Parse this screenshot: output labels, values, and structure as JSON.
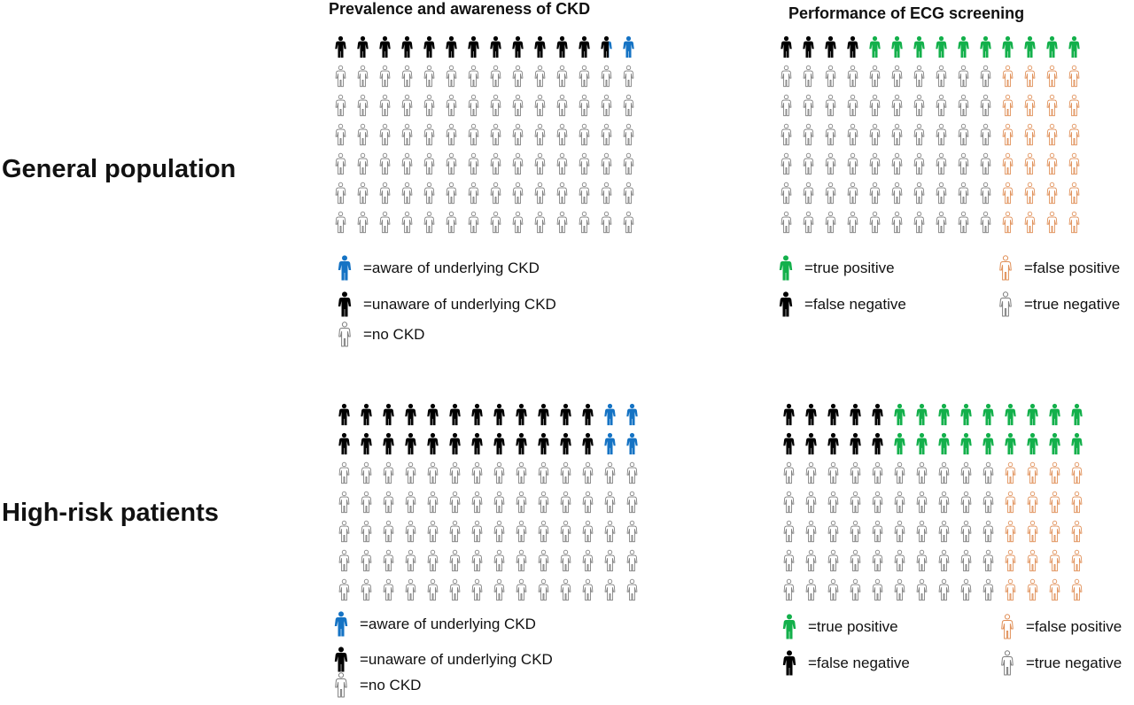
{
  "column_titles": {
    "prevalence": "Prevalence and awareness of CKD",
    "ecg": "Performance of ECG screening"
  },
  "row_labels": {
    "general": "General population",
    "high_risk": "High-risk patients"
  },
  "colors": {
    "aware": "#1573c4",
    "unaware": "#000000",
    "no_ckd": "#7f7f7f",
    "true_positive": "#13b04b",
    "false_negative": "#000000",
    "false_positive": "#e08f57",
    "true_negative": "#7f7f7f"
  },
  "icons": {
    "filled": "person-filled-icon",
    "outline": "person-outline-icon"
  },
  "legends": {
    "prevalence": {
      "aware": "=aware of underlying CKD",
      "unaware": "=unaware of underlying CKD",
      "no_ckd": "=no CKD"
    },
    "ecg": {
      "true_positive": "=true positive",
      "false_negative": "=false negative",
      "false_positive": "=false positive",
      "true_negative": "=true negative"
    }
  },
  "chart_data": [
    {
      "type": "icon-array",
      "panel": "general-prevalence",
      "title": "Prevalence and awareness of CKD",
      "rows": 7,
      "cols": 14,
      "rows_icons": [
        [
          "unaware",
          "unaware",
          "unaware",
          "unaware",
          "unaware",
          "unaware",
          "unaware",
          "unaware",
          "unaware",
          "unaware",
          "unaware",
          "unaware",
          "unaware-aware",
          "aware"
        ],
        [
          "no_ckd",
          "no_ckd",
          "no_ckd",
          "no_ckd",
          "no_ckd",
          "no_ckd",
          "no_ckd",
          "no_ckd",
          "no_ckd",
          "no_ckd",
          "no_ckd",
          "no_ckd",
          "no_ckd",
          "no_ckd"
        ],
        [
          "no_ckd",
          "no_ckd",
          "no_ckd",
          "no_ckd",
          "no_ckd",
          "no_ckd",
          "no_ckd",
          "no_ckd",
          "no_ckd",
          "no_ckd",
          "no_ckd",
          "no_ckd",
          "no_ckd",
          "no_ckd"
        ],
        [
          "no_ckd",
          "no_ckd",
          "no_ckd",
          "no_ckd",
          "no_ckd",
          "no_ckd",
          "no_ckd",
          "no_ckd",
          "no_ckd",
          "no_ckd",
          "no_ckd",
          "no_ckd",
          "no_ckd",
          "no_ckd"
        ],
        [
          "no_ckd",
          "no_ckd",
          "no_ckd",
          "no_ckd",
          "no_ckd",
          "no_ckd",
          "no_ckd",
          "no_ckd",
          "no_ckd",
          "no_ckd",
          "no_ckd",
          "no_ckd",
          "no_ckd",
          "no_ckd"
        ],
        [
          "no_ckd",
          "no_ckd",
          "no_ckd",
          "no_ckd",
          "no_ckd",
          "no_ckd",
          "no_ckd",
          "no_ckd",
          "no_ckd",
          "no_ckd",
          "no_ckd",
          "no_ckd",
          "no_ckd",
          "no_ckd"
        ],
        [
          "no_ckd",
          "no_ckd",
          "no_ckd",
          "no_ckd",
          "no_ckd",
          "no_ckd",
          "no_ckd",
          "no_ckd",
          "no_ckd",
          "no_ckd",
          "no_ckd",
          "no_ckd",
          "no_ckd",
          "no_ckd"
        ]
      ]
    },
    {
      "type": "icon-array",
      "panel": "general-ecg",
      "title": "Performance of ECG screening",
      "rows": 7,
      "cols": 14,
      "rows_icons": [
        [
          "false_negative",
          "false_negative",
          "false_negative",
          "false_negative",
          "true_positive",
          "true_positive",
          "true_positive",
          "true_positive",
          "true_positive",
          "true_positive",
          "true_positive",
          "true_positive",
          "true_positive",
          "true_positive"
        ],
        [
          "true_negative",
          "true_negative",
          "true_negative",
          "true_negative",
          "true_negative",
          "true_negative",
          "true_negative",
          "true_negative",
          "true_negative",
          "true_negative",
          "false_positive",
          "false_positive",
          "false_positive",
          "false_positive"
        ],
        [
          "true_negative",
          "true_negative",
          "true_negative",
          "true_negative",
          "true_negative",
          "true_negative",
          "true_negative",
          "true_negative",
          "true_negative",
          "true_negative",
          "false_positive",
          "false_positive",
          "false_positive",
          "false_positive"
        ],
        [
          "true_negative",
          "true_negative",
          "true_negative",
          "true_negative",
          "true_negative",
          "true_negative",
          "true_negative",
          "true_negative",
          "true_negative",
          "true_negative",
          "false_positive",
          "false_positive",
          "false_positive",
          "false_positive"
        ],
        [
          "true_negative",
          "true_negative",
          "true_negative",
          "true_negative",
          "true_negative",
          "true_negative",
          "true_negative",
          "true_negative",
          "true_negative",
          "true_negative",
          "false_positive",
          "false_positive",
          "false_positive",
          "false_positive"
        ],
        [
          "true_negative",
          "true_negative",
          "true_negative",
          "true_negative",
          "true_negative",
          "true_negative",
          "true_negative",
          "true_negative",
          "true_negative",
          "true_negative",
          "false_positive",
          "false_positive",
          "false_positive",
          "false_positive"
        ],
        [
          "true_negative",
          "true_negative",
          "true_negative",
          "true_negative",
          "true_negative",
          "true_negative",
          "true_negative",
          "true_negative",
          "true_negative",
          "true_negative",
          "false_positive",
          "false_positive",
          "false_positive",
          "false_positive"
        ]
      ]
    },
    {
      "type": "icon-array",
      "panel": "high-risk-prevalence",
      "rows": 7,
      "cols": 14,
      "rows_icons": [
        [
          "unaware",
          "unaware",
          "unaware",
          "unaware",
          "unaware",
          "unaware",
          "unaware",
          "unaware",
          "unaware",
          "unaware",
          "unaware",
          "unaware",
          "aware",
          "aware"
        ],
        [
          "unaware",
          "unaware",
          "unaware",
          "unaware",
          "unaware",
          "unaware",
          "unaware",
          "unaware",
          "unaware",
          "unaware",
          "unaware",
          "unaware",
          "aware",
          "aware"
        ],
        [
          "no_ckd",
          "no_ckd",
          "no_ckd",
          "no_ckd",
          "no_ckd",
          "no_ckd",
          "no_ckd",
          "no_ckd",
          "no_ckd",
          "no_ckd",
          "no_ckd",
          "no_ckd",
          "no_ckd",
          "no_ckd"
        ],
        [
          "no_ckd",
          "no_ckd",
          "no_ckd",
          "no_ckd",
          "no_ckd",
          "no_ckd",
          "no_ckd",
          "no_ckd",
          "no_ckd",
          "no_ckd",
          "no_ckd",
          "no_ckd",
          "no_ckd",
          "no_ckd"
        ],
        [
          "no_ckd",
          "no_ckd",
          "no_ckd",
          "no_ckd",
          "no_ckd",
          "no_ckd",
          "no_ckd",
          "no_ckd",
          "no_ckd",
          "no_ckd",
          "no_ckd",
          "no_ckd",
          "no_ckd",
          "no_ckd"
        ],
        [
          "no_ckd",
          "no_ckd",
          "no_ckd",
          "no_ckd",
          "no_ckd",
          "no_ckd",
          "no_ckd",
          "no_ckd",
          "no_ckd",
          "no_ckd",
          "no_ckd",
          "no_ckd",
          "no_ckd",
          "no_ckd"
        ],
        [
          "no_ckd",
          "no_ckd",
          "no_ckd",
          "no_ckd",
          "no_ckd",
          "no_ckd",
          "no_ckd",
          "no_ckd",
          "no_ckd",
          "no_ckd",
          "no_ckd",
          "no_ckd",
          "no_ckd",
          "no_ckd"
        ]
      ]
    },
    {
      "type": "icon-array",
      "panel": "high-risk-ecg",
      "rows": 7,
      "cols": 14,
      "rows_icons": [
        [
          "false_negative",
          "false_negative",
          "false_negative",
          "false_negative",
          "false_negative",
          "true_positive",
          "true_positive",
          "true_positive",
          "true_positive",
          "true_positive",
          "true_positive",
          "true_positive",
          "true_positive",
          "true_positive"
        ],
        [
          "false_negative",
          "false_negative",
          "false_negative",
          "false_negative",
          "false_negative",
          "true_positive",
          "true_positive",
          "true_positive",
          "true_positive",
          "true_positive",
          "true_positive",
          "true_positive",
          "true_positive",
          "true_positive"
        ],
        [
          "true_negative",
          "true_negative",
          "true_negative",
          "true_negative",
          "true_negative",
          "true_negative",
          "true_negative",
          "true_negative",
          "true_negative",
          "true_negative",
          "false_positive",
          "false_positive",
          "false_positive",
          "false_positive"
        ],
        [
          "true_negative",
          "true_negative",
          "true_negative",
          "true_negative",
          "true_negative",
          "true_negative",
          "true_negative",
          "true_negative",
          "true_negative",
          "true_negative",
          "false_positive",
          "false_positive",
          "false_positive",
          "false_positive"
        ],
        [
          "true_negative",
          "true_negative",
          "true_negative",
          "true_negative",
          "true_negative",
          "true_negative",
          "true_negative",
          "true_negative",
          "true_negative",
          "true_negative",
          "false_positive",
          "false_positive",
          "false_positive",
          "false_positive"
        ],
        [
          "true_negative",
          "true_negative",
          "true_negative",
          "true_negative",
          "true_negative",
          "true_negative",
          "true_negative",
          "true_negative",
          "true_negative",
          "true_negative",
          "false_positive",
          "false_positive",
          "false_positive",
          "false_positive"
        ],
        [
          "true_negative",
          "true_negative",
          "true_negative",
          "true_negative",
          "true_negative",
          "true_negative",
          "true_negative",
          "true_negative",
          "true_negative",
          "true_negative",
          "false_positive",
          "false_positive",
          "false_positive",
          "false_positive"
        ]
      ]
    }
  ]
}
